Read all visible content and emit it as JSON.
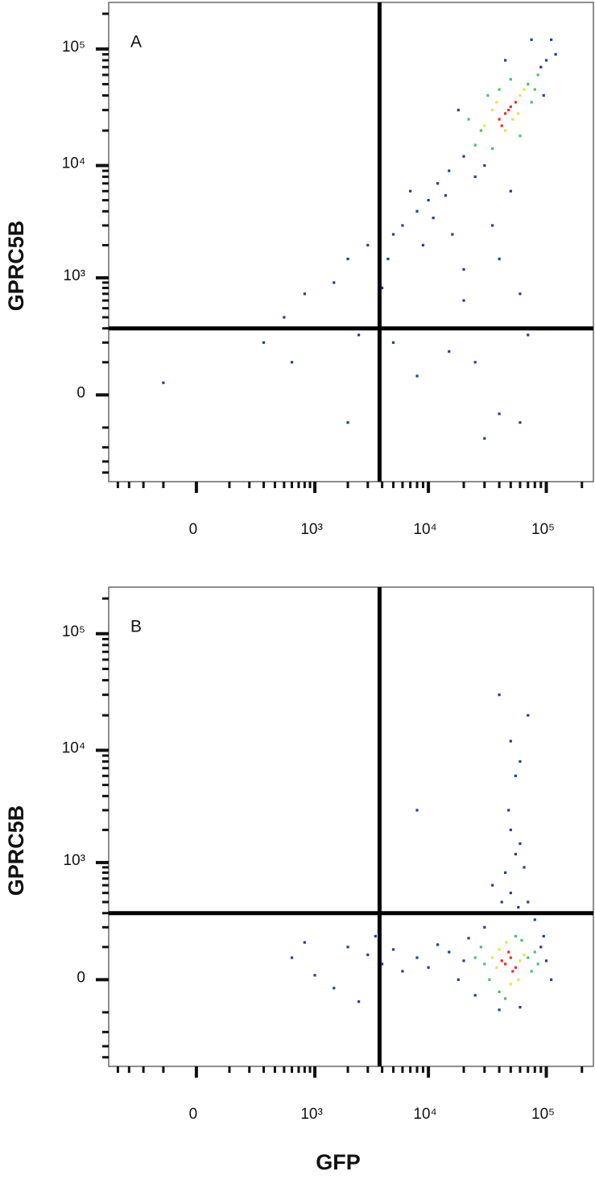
{
  "chart_data": [
    {
      "type": "scatter",
      "panel_label": "A",
      "ylabel": "GPRC5B",
      "xscale": "biexponential",
      "yscale": "biexponential",
      "xlim": [
        -500,
        250000
      ],
      "ylim": [
        -500,
        250000
      ],
      "xticks": [
        0,
        {
          "value": 1000,
          "label": "10³"
        },
        {
          "value": 10000,
          "label": "10⁴"
        },
        {
          "value": 100000,
          "label": "10⁵"
        }
      ],
      "yticks": [
        0,
        {
          "value": 1000,
          "label": "10³"
        },
        {
          "value": 10000,
          "label": "10⁴"
        },
        {
          "value": 100000,
          "label": "10⁵"
        }
      ],
      "minor_ticks": [
        -400,
        -300,
        -200,
        -100,
        100,
        200,
        300,
        400,
        500,
        600,
        700,
        800,
        900,
        2000,
        3000,
        4000,
        5000,
        6000,
        7000,
        8000,
        9000,
        20000,
        30000,
        40000,
        50000,
        60000,
        70000,
        80000,
        90000,
        200000
      ],
      "gates": {
        "x": 3800,
        "y": 300
      },
      "series": [
        {
          "color": "#233f9c",
          "x": [
            20000,
            15000,
            90000,
            100000,
            18000,
            95000,
            12000,
            10000,
            8000,
            6000,
            5000,
            7000,
            4500,
            9000,
            11000,
            14000,
            25000,
            30000,
            16000,
            20000,
            40000,
            60000,
            35000,
            4000,
            3000,
            2000,
            1500,
            800,
            500,
            1200,
            2500,
            300,
            -100,
            600,
            25000,
            40000,
            60000,
            15000,
            8000,
            70000,
            30000,
            2000,
            110000,
            120000,
            75000,
            45000,
            5000,
            50000,
            20000
          ],
          "y": [
            12000,
            9000,
            70000,
            80000,
            30000,
            40000,
            7000,
            5000,
            4000,
            3000,
            2500,
            6000,
            1500,
            2000,
            3500,
            5500,
            8000,
            10000,
            2500,
            1200,
            1500,
            700,
            3000,
            800,
            2000,
            1500,
            900,
            700,
            400,
            300,
            250,
            200,
            30,
            100,
            100,
            -50,
            -80,
            150,
            50,
            250,
            -150,
            -80,
            120000,
            90000,
            120000,
            80000,
            200,
            6000,
            600
          ]
        },
        {
          "color": "#4fbf6a",
          "x": [
            28000,
            70000,
            25000,
            75000,
            40000,
            60000,
            32000,
            85000,
            22000,
            50000,
            35000,
            80000
          ],
          "y": [
            20000,
            50000,
            15000,
            35000,
            45000,
            18000,
            40000,
            60000,
            25000,
            55000,
            14000,
            45000
          ]
        },
        {
          "color": "#eee23a",
          "x": [
            35000,
            60000,
            45000,
            38000,
            52000,
            65000,
            30000,
            58000
          ],
          "y": [
            30000,
            40000,
            20000,
            35000,
            25000,
            45000,
            22000,
            28000
          ]
        },
        {
          "color": "#e3322b",
          "x": [
            45000,
            50000,
            40000,
            55000,
            48000,
            42000
          ],
          "y": [
            28000,
            32000,
            25000,
            35000,
            30000,
            22000
          ]
        }
      ]
    },
    {
      "type": "scatter",
      "panel_label": "B",
      "ylabel": "GPRC5B",
      "xlabel": "GFP",
      "xscale": "biexponential",
      "yscale": "biexponential",
      "xlim": [
        -500,
        250000
      ],
      "ylim": [
        -500,
        250000
      ],
      "xticks": [
        0,
        {
          "value": 1000,
          "label": "10³"
        },
        {
          "value": 10000,
          "label": "10⁴"
        },
        {
          "value": 100000,
          "label": "10⁵"
        }
      ],
      "yticks": [
        0,
        {
          "value": 1000,
          "label": "10³"
        },
        {
          "value": 10000,
          "label": "10⁴"
        },
        {
          "value": 100000,
          "label": "10⁵"
        }
      ],
      "minor_ticks": [
        -400,
        -300,
        -200,
        -100,
        100,
        200,
        300,
        400,
        500,
        600,
        700,
        800,
        900,
        2000,
        3000,
        4000,
        5000,
        6000,
        7000,
        8000,
        9000,
        20000,
        30000,
        40000,
        50000,
        60000,
        70000,
        80000,
        90000,
        200000
      ],
      "gates": {
        "x": 3800,
        "y": 300
      },
      "series": [
        {
          "color": "#233f9c",
          "x": [
            20000,
            15000,
            10000,
            8000,
            6000,
            5000,
            4000,
            12000,
            18000,
            22000,
            90000,
            100000,
            110000,
            95000,
            60000,
            40000,
            25000,
            3000,
            2000,
            1500,
            800,
            600,
            1000,
            2500,
            3500,
            30000,
            40000,
            50000,
            45000,
            55000,
            60000,
            50000,
            48000,
            55000,
            50000,
            60000,
            40000,
            70000,
            8000,
            35000,
            70000,
            65000,
            80000,
            42000,
            58000
          ],
          "y": [
            50,
            80,
            30,
            60,
            20,
            90,
            40,
            110,
            0,
            140,
            100,
            50,
            0,
            150,
            -80,
            -90,
            -40,
            70,
            100,
            -20,
            120,
            60,
            10,
            -60,
            150,
            200,
            300,
            500,
            800,
            1200,
            1500,
            2000,
            3000,
            6000,
            12000,
            8000,
            30000,
            20000,
            3000,
            600,
            400,
            900,
            250,
            400,
            350
          ]
        },
        {
          "color": "#4fbf6a",
          "x": [
            30000,
            70000,
            28000,
            75000,
            40000,
            62000,
            33000,
            80000,
            25000,
            55000,
            45000,
            85000
          ],
          "y": [
            40,
            60,
            100,
            20,
            -30,
            130,
            0,
            80,
            60,
            150,
            -50,
            40
          ]
        },
        {
          "color": "#eee23a",
          "x": [
            38000,
            60000,
            40000,
            58000,
            35000,
            65000,
            46000,
            50000
          ],
          "y": [
            30,
            50,
            90,
            0,
            60,
            70,
            120,
            -10
          ]
        },
        {
          "color": "#e3322b",
          "x": [
            45000,
            50000,
            55000,
            48000,
            42000,
            52000
          ],
          "y": [
            40,
            60,
            30,
            80,
            50,
            20
          ]
        }
      ]
    }
  ]
}
